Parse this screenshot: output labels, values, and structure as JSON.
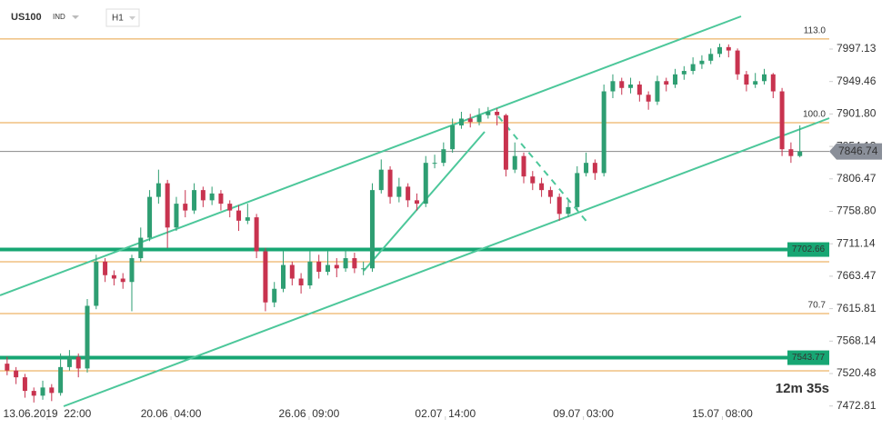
{
  "chart_data": {
    "type": "candlestick",
    "symbol": "US100",
    "instrument_type": "IND",
    "timeframe": "H1",
    "countdown": "12m 35s",
    "up_color": "#2e9e72",
    "down_color": "#c8334f",
    "ylim": [
      7452.4,
      8069.2
    ],
    "yticks": [
      7997.13,
      7949.46,
      {
        "value": 7901.8,
        "label": "7901.80"
      },
      7854.13,
      7806.47,
      {
        "value": 7758.8,
        "label": "7758.80"
      },
      7711.14,
      7663.47,
      7615.81,
      7568.14,
      7520.48,
      7472.81
    ],
    "xlim": [
      -0.8,
      92.3
    ],
    "xticks": [
      {
        "value": 4.5,
        "label": "13.06.2019  22:00"
      },
      {
        "value": 18.4,
        "label": "20.06  04:00"
      },
      {
        "value": 33.9,
        "label": "26.06  09:00"
      },
      {
        "value": 49.2,
        "label": "02.07  14:00"
      },
      {
        "value": 64.7,
        "label": "09.07  03:00"
      },
      {
        "value": 80.3,
        "label": "15.07  08:00"
      }
    ],
    "current_price": 7846.74,
    "fib_levels": [
      {
        "value": 8011.9,
        "label": "113.0"
      },
      {
        "value": 7889.0,
        "label": "100.0"
      },
      {
        "value": 7684.7
      },
      {
        "value": 7608.6,
        "label": "70.7"
      },
      {
        "value": 7524.5
      }
    ],
    "support_levels": [
      {
        "value": 7702.66
      },
      {
        "value": 7543.77
      }
    ],
    "open": [
      7535,
      7525,
      7515,
      7495,
      7488,
      7500,
      7492,
      7530,
      7545,
      7528,
      7620,
      7685,
      7665,
      7660,
      7655,
      7690,
      7720,
      7780,
      7800,
      7735,
      7770,
      7760,
      7790,
      7775,
      7785,
      7770,
      7760,
      7745,
      7750,
      7700,
      7625,
      7645,
      7680,
      7660,
      7650,
      7685,
      7670,
      7680,
      7675,
      7690,
      7675,
      7675,
      7790,
      7820,
      7780,
      7795,
      7775,
      7770,
      7830,
      7830,
      7850,
      7885,
      7895,
      7890,
      7900,
      7905,
      7900,
      7820,
      7840,
      7810,
      7800,
      7790,
      7780,
      7755,
      7765,
      7815,
      7830,
      7815,
      7935,
      7950,
      7940,
      7945,
      7930,
      7920,
      7950,
      7945,
      7960,
      7965,
      7975,
      7980,
      7990,
      8000,
      7995,
      7960,
      7945,
      7950,
      7960,
      7935,
      7850,
      7840
    ],
    "high": [
      7545,
      7530,
      7520,
      7500,
      7510,
      7505,
      7550,
      7555,
      7550,
      7630,
      7695,
      7690,
      7672,
      7668,
      7695,
      7735,
      7790,
      7820,
      7805,
      7780,
      7790,
      7800,
      7795,
      7795,
      7790,
      7775,
      7768,
      7770,
      7755,
      7705,
      7655,
      7700,
      7685,
      7668,
      7700,
      7695,
      7700,
      7690,
      7702,
      7698,
      7685,
      7800,
      7835,
      7825,
      7808,
      7800,
      7785,
      7840,
      7842,
      7860,
      7895,
      7905,
      7902,
      7910,
      7912,
      7910,
      7902,
      7860,
      7845,
      7818,
      7808,
      7795,
      7785,
      7775,
      7825,
      7845,
      7835,
      7945,
      7960,
      7955,
      7955,
      7950,
      7935,
      7958,
      7955,
      7968,
      7972,
      7985,
      7988,
      7998,
      8005,
      8004,
      7998,
      7965,
      7962,
      7968,
      7962,
      7940,
      7860,
      7885
    ],
    "low": [
      7518,
      7505,
      7485,
      7478,
      7482,
      7480,
      7488,
      7525,
      7515,
      7522,
      7615,
      7655,
      7650,
      7645,
      7612,
      7685,
      7715,
      7770,
      7705,
      7730,
      7750,
      7755,
      7765,
      7768,
      7760,
      7750,
      7730,
      7740,
      7690,
      7612,
      7618,
      7640,
      7650,
      7638,
      7645,
      7660,
      7665,
      7662,
      7670,
      7668,
      7665,
      7670,
      7785,
      7770,
      7772,
      7765,
      7760,
      7765,
      7822,
      7825,
      7845,
      7880,
      7882,
      7885,
      7895,
      7885,
      7810,
      7815,
      7800,
      7790,
      7780,
      7770,
      7745,
      7750,
      7760,
      7810,
      7805,
      7810,
      7925,
      7930,
      7932,
      7920,
      7908,
      7915,
      7935,
      7940,
      7952,
      7960,
      7968,
      7975,
      7985,
      7985,
      7952,
      7935,
      7940,
      7945,
      7925,
      7840,
      7830,
      7838
    ],
    "close": [
      7525,
      7515,
      7495,
      7488,
      7500,
      7492,
      7530,
      7545,
      7528,
      7620,
      7685,
      7665,
      7660,
      7655,
      7690,
      7720,
      7780,
      7800,
      7735,
      7770,
      7760,
      7790,
      7775,
      7785,
      7770,
      7760,
      7745,
      7750,
      7700,
      7625,
      7645,
      7680,
      7660,
      7650,
      7685,
      7670,
      7680,
      7675,
      7690,
      7675,
      7675,
      7790,
      7820,
      7780,
      7795,
      7775,
      7770,
      7830,
      7830,
      7850,
      7885,
      7895,
      7890,
      7900,
      7905,
      7900,
      7820,
      7840,
      7810,
      7800,
      7790,
      7780,
      7755,
      7765,
      7815,
      7830,
      7815,
      7935,
      7950,
      7940,
      7945,
      7930,
      7920,
      7950,
      7945,
      7960,
      7965,
      7975,
      7980,
      7990,
      8000,
      7995,
      7960,
      7945,
      7950,
      7960,
      7935,
      7850,
      7840,
      7846.74
    ]
  }
}
